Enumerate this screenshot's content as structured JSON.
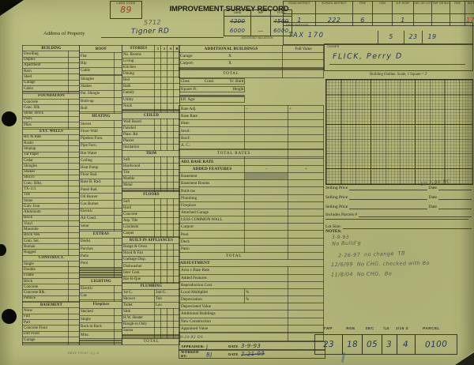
{
  "colors": {
    "card_bg": "#b7ba7c",
    "grid_line": "#3c3e28",
    "ink": "#2a3560",
    "pencil": "#535b46",
    "red": "#b23a2e"
  },
  "header": {
    "land_code_label": "LAND CODE",
    "land_code_value": "89",
    "title": "IMPROVEMENT SURVEY RECORD",
    "valuation": {
      "cols": [
        "LAND",
        "IMP",
        "TOTAL"
      ],
      "row1": [
        "4200",
        "",
        "4500"
      ],
      "row2": [
        "6000",
        "—",
        "6000"
      ],
      "caption": "ASSESSED VALUATION"
    },
    "address_label": "Address of Property",
    "address_value_line1": "5712",
    "address_value_line2": "Tigner RD",
    "districts": {
      "labels": [
        "ROAD DISTRICT",
        "SCHOOL DISTRICT",
        "FIRE",
        "CEM",
        "A.P. HOSP",
        "SEC OR LOT",
        "TWP OR BLK",
        "RGE",
        "TAX NO"
      ],
      "values": [
        "1",
        "222",
        "6",
        "",
        "1",
        "",
        "",
        "",
        "170"
      ]
    },
    "description_label": "DESCRIPTION",
    "description_value": "TAX 170",
    "description_cells": [
      "5",
      "23",
      "19"
    ],
    "owner_label": "OWNER",
    "owner_value": "FLICK, Perry D"
  },
  "left_table": {
    "stories_cols": [
      "1",
      "2",
      "A",
      "B"
    ],
    "groupA": [
      "#BUILDING",
      "Dwelling",
      "Duplex",
      "Apartment",
      "Barn",
      "Shed",
      "Garage",
      "Cabin",
      "",
      "",
      "#FOUNDATION",
      "Concrete",
      "Conc. Blk",
      "Stone, Brick",
      "Posts",
      "Piles",
      "",
      "#EXT. WALLS",
      "Bd. & Bats",
      "Rustic",
      "Shiplap",
      "Tar Paper",
      "Cedar",
      "Shingles",
      "Shakes",
      "Stucco",
      "Conc. Blks.",
      "TX-111",
      "Tile",
      "Stone",
      "Galv. Iron",
      "Aluminum",
      "Brick",
      "Vinyl",
      "Masonite",
      "Brick Ven.",
      "Com. Sel.",
      "Roman",
      "Rugged",
      "#CONSTRUCT.",
      "Single",
      "Double",
      "Frame",
      "Brick",
      "Concrete",
      "Concrete Blk.",
      "Pumice",
      "",
      "#BASEMENT",
      "None",
      "Full",
      "Part",
      "Concrete Floor",
      "Dirt Floor",
      "Garage",
      "",
      ""
    ],
    "groupB": [
      "#ROOF",
      "Flat",
      "Hip",
      "Gable",
      "",
      "Shingles",
      "Shakes",
      "Pat. Shingle",
      "Built-up",
      "Roll",
      "",
      "#HEATING",
      "Stoves",
      "Floor-Wall",
      "Pipeless Furn.",
      "Pipe Furn.",
      "Hot Water",
      "Ceiling",
      "Heat Pump",
      "Floor Rad.",
      "Base B. Rad.",
      "Panel Rad.",
      "Oil Burner",
      "Gas Burner",
      "Electric",
      "Air Cond.",
      "Solar",
      "",
      "#EXTRAS",
      "Decks",
      "Porches",
      "Patio",
      "Pool",
      "",
      "",
      "",
      "",
      "",
      "",
      "",
      "",
      "",
      "#LIGHTING",
      "Electric",
      "Gas",
      "",
      "#Fireplace",
      "Stacked",
      "Single",
      "Back to Back",
      "",
      "Misc.",
      "",
      "",
      "",
      "",
      ""
    ],
    "groupC": [
      "STORIES",
      "No. Rooms",
      "Living",
      "Kitchen",
      "Dining",
      "Bed",
      "Bath",
      "Family",
      "Utility",
      "Nook",
      "",
      "",
      "",
      "#CEILED",
      "Wall Board",
      "Paneled",
      "Plast. Bd.",
      "Plaster",
      "Insulation",
      "#TRIM",
      "Soft",
      "Hardwood",
      "Tile",
      "Marble",
      "Metal",
      "",
      "",
      "",
      "#FLOORS",
      "Soft",
      "Hard",
      "Concrete",
      "Asp. Tile",
      "Linoleum",
      "Carpet",
      "",
      "#BUILT-IN APPLIANCES",
      "Range & Oven",
      "Hood & Fan",
      "Garbage Disp.",
      "Dishwasher",
      "Inter Com.",
      "Bar-B-Que",
      "",
      "#PLUMBING",
      "1st G.|2nd G.",
      "Shower|Tub",
      "Toilet|Lav.",
      "Sink",
      "H.W. Heater",
      "Rough-in Only",
      "Sauna",
      "",
      "",
      "",
      "",
      "#TOTAL"
    ]
  },
  "middle_table": {
    "rows": [
      [
        "abh",
        "ADDITIONAL BUILDINGS",
        "Full Value"
      ],
      [
        "ab",
        "Garage:",
        "X"
      ],
      [
        "ab",
        "Carport:",
        "X"
      ],
      [
        "ab",
        "",
        ""
      ],
      [
        "ab",
        "",
        ""
      ],
      [
        "ab",
        "",
        ""
      ],
      [
        "abtot",
        "TOTAL"
      ],
      [
        "seg",
        "Class|Cond.|Yr. Built"
      ],
      [
        "seg",
        "Square Ft.|Height"
      ],
      [
        "seg",
        ""
      ],
      [
        "seg",
        "Eff. Age:"
      ],
      [
        "r3",
        "Rate Adj.",
        "−",
        "+"
      ],
      [
        "r3",
        "Base Rate",
        "",
        ""
      ],
      [
        "r3",
        "Heat:",
        "",
        ""
      ],
      [
        "r3",
        "Insul:",
        "",
        ""
      ],
      [
        "r3",
        "Roof:",
        "",
        ""
      ],
      [
        "r3",
        "A. C.:",
        "",
        ""
      ],
      [
        "r3",
        "",
        "",
        ""
      ],
      [
        "tot",
        "TOTAL RATES"
      ],
      [
        "r3",
        "",
        "",
        ""
      ],
      [
        "r3b",
        "ADJ. BASE RATE",
        "",
        ""
      ],
      [
        "afh",
        "ADDED FEATURES",
        "−",
        "+"
      ],
      [
        "r3s",
        "Basement",
        "",
        ""
      ],
      [
        "r3",
        "Basement Rooms",
        "",
        ""
      ],
      [
        "r3",
        "Built-ins",
        "",
        ""
      ],
      [
        "r3",
        "Plumbing",
        "",
        ""
      ],
      [
        "r3",
        "Fireplace",
        "",
        ""
      ],
      [
        "r3",
        "Attached Garage",
        "",
        ""
      ],
      [
        "r3",
        "LESS COMMON WALL",
        "",
        ""
      ],
      [
        "r3",
        "Carport",
        "",
        ""
      ],
      [
        "r3",
        "Pool",
        "",
        ""
      ],
      [
        "r3",
        "Deck",
        "",
        ""
      ],
      [
        "r3",
        "Patio",
        "",
        ""
      ],
      [
        "tot",
        "TOTAL"
      ],
      [
        "h1",
        "ADJUSTMENT"
      ],
      [
        "adj",
        "Area      x Base Rate"
      ],
      [
        "adj",
        "Added Features"
      ],
      [
        "adj",
        "Reproduction Cost"
      ],
      [
        "pct",
        "Local Multiplier",
        "%"
      ],
      [
        "pct",
        "Depreciation",
        "%"
      ],
      [
        "adj",
        "Depreciated Value"
      ],
      [
        "adj",
        "Additional Buildings"
      ],
      [
        "adj",
        "New Construction"
      ],
      [
        "adj",
        "Appraised Value"
      ],
      [
        "adj",
        ""
      ],
      [
        "hw",
        "8-24-82 DS"
      ]
    ]
  },
  "footer": {
    "appraiser_label": "APPRAISER:",
    "appraiser_sig": "J",
    "date_label": "DATE",
    "appraiser_date": "3-9-93",
    "worked_label": "WORKED BY:",
    "worked_sig": "BJ",
    "worked_date": "7-21-03",
    "parcel": {
      "labels": [
        "TWP",
        "RGE",
        "SEC",
        "¼S",
        "1/16 S",
        "PARCEL"
      ],
      "values": [
        "23",
        "18",
        "05",
        "3",
        "4",
        "0100"
      ]
    },
    "form_code": "BB&P PRINT 4()–8"
  },
  "right_panel": {
    "outline_caption": "Building Outline.  Scale, 1 Square = 2'",
    "selling_label": "Selling Price",
    "date_label": "Date",
    "selling_note": "10-2-98 NC",
    "includes_label": "Includes Parcels #",
    "lot_label": "Lot Size:",
    "notes_label": "NOTES:",
    "notes": [
      "3-9-93",
      "No Build'g",
      "2-26-97  no change  TB",
      "12/6/99  No CHG. checked with Bo",
      "11/8/04  No CHG.  Bo"
    ]
  }
}
